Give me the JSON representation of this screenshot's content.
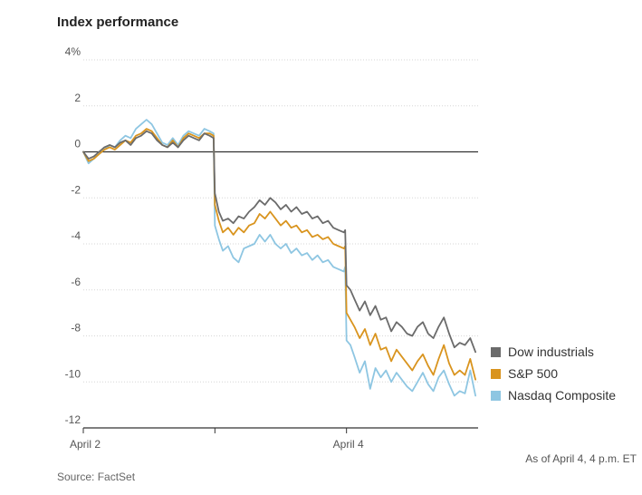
{
  "chart_data": {
    "type": "line",
    "title": "Index performance",
    "ylim": [
      -12,
      4
    ],
    "y_ticks": [
      {
        "value": 4,
        "label": "4%"
      },
      {
        "value": 2,
        "label": "2"
      },
      {
        "value": 0,
        "label": "0"
      },
      {
        "value": -2,
        "label": "-2"
      },
      {
        "value": -4,
        "label": "-4"
      },
      {
        "value": -6,
        "label": "-6"
      },
      {
        "value": -8,
        "label": "-8"
      },
      {
        "value": -10,
        "label": "-10"
      },
      {
        "value": -12,
        "label": "-12"
      }
    ],
    "xlim": [
      0,
      3
    ],
    "x_ticks": [
      {
        "value": 0,
        "label": "April 2"
      },
      {
        "value": 1,
        "label": ""
      },
      {
        "value": 2,
        "label": "April 4"
      }
    ],
    "grid": true,
    "legend_position": "bottom-right",
    "series": [
      {
        "name": "Dow industrials",
        "color": "#6b6b6b",
        "x": [
          0,
          0.04,
          0.08,
          0.12,
          0.16,
          0.2,
          0.24,
          0.28,
          0.32,
          0.36,
          0.4,
          0.44,
          0.48,
          0.52,
          0.56,
          0.6,
          0.64,
          0.68,
          0.72,
          0.76,
          0.8,
          0.84,
          0.88,
          0.92,
          0.96,
          0.99,
          1.0,
          1.03,
          1.06,
          1.1,
          1.14,
          1.18,
          1.22,
          1.26,
          1.3,
          1.34,
          1.38,
          1.42,
          1.46,
          1.5,
          1.54,
          1.58,
          1.62,
          1.66,
          1.7,
          1.74,
          1.78,
          1.82,
          1.86,
          1.9,
          1.94,
          1.98,
          1.99,
          2.0,
          2.03,
          2.06,
          2.1,
          2.14,
          2.18,
          2.22,
          2.26,
          2.3,
          2.34,
          2.38,
          2.42,
          2.46,
          2.5,
          2.54,
          2.58,
          2.62,
          2.66,
          2.7,
          2.74,
          2.78,
          2.82,
          2.86,
          2.9,
          2.94,
          2.98
        ],
        "y": [
          0,
          -0.3,
          -0.2,
          0,
          0.2,
          0.3,
          0.2,
          0.4,
          0.5,
          0.3,
          0.6,
          0.7,
          0.9,
          0.8,
          0.5,
          0.3,
          0.2,
          0.4,
          0.2,
          0.5,
          0.7,
          0.6,
          0.5,
          0.8,
          0.7,
          0.6,
          -1.8,
          -2.6,
          -3.0,
          -2.9,
          -3.1,
          -2.8,
          -2.9,
          -2.6,
          -2.4,
          -2.1,
          -2.3,
          -2.0,
          -2.2,
          -2.5,
          -2.3,
          -2.6,
          -2.4,
          -2.7,
          -2.6,
          -2.9,
          -2.8,
          -3.1,
          -3.0,
          -3.3,
          -3.4,
          -3.5,
          -3.4,
          -5.8,
          -6.0,
          -6.4,
          -6.9,
          -6.5,
          -7.1,
          -6.7,
          -7.3,
          -7.2,
          -7.8,
          -7.4,
          -7.6,
          -7.9,
          -8.0,
          -7.6,
          -7.4,
          -7.9,
          -8.1,
          -7.6,
          -7.2,
          -7.9,
          -8.5,
          -8.3,
          -8.4,
          -8.1,
          -8.7
        ]
      },
      {
        "name": "S&P 500",
        "color": "#d9941e",
        "x": [
          0,
          0.04,
          0.08,
          0.12,
          0.16,
          0.2,
          0.24,
          0.28,
          0.32,
          0.36,
          0.4,
          0.44,
          0.48,
          0.52,
          0.56,
          0.6,
          0.64,
          0.68,
          0.72,
          0.76,
          0.8,
          0.84,
          0.88,
          0.92,
          0.96,
          0.99,
          1.0,
          1.03,
          1.06,
          1.1,
          1.14,
          1.18,
          1.22,
          1.26,
          1.3,
          1.34,
          1.38,
          1.42,
          1.46,
          1.5,
          1.54,
          1.58,
          1.62,
          1.66,
          1.7,
          1.74,
          1.78,
          1.82,
          1.86,
          1.9,
          1.94,
          1.98,
          1.99,
          2.0,
          2.03,
          2.06,
          2.1,
          2.14,
          2.18,
          2.22,
          2.26,
          2.3,
          2.34,
          2.38,
          2.42,
          2.46,
          2.5,
          2.54,
          2.58,
          2.62,
          2.66,
          2.7,
          2.74,
          2.78,
          2.82,
          2.86,
          2.9,
          2.94,
          2.98
        ],
        "y": [
          0,
          -0.4,
          -0.3,
          -0.1,
          0.1,
          0.2,
          0.1,
          0.3,
          0.5,
          0.4,
          0.7,
          0.8,
          1.0,
          0.9,
          0.6,
          0.3,
          0.2,
          0.5,
          0.2,
          0.6,
          0.8,
          0.7,
          0.6,
          0.8,
          0.8,
          0.7,
          -2.3,
          -3.0,
          -3.5,
          -3.3,
          -3.6,
          -3.3,
          -3.5,
          -3.2,
          -3.1,
          -2.7,
          -2.9,
          -2.6,
          -2.9,
          -3.2,
          -3.0,
          -3.3,
          -3.2,
          -3.5,
          -3.4,
          -3.7,
          -3.6,
          -3.8,
          -3.7,
          -4.0,
          -4.1,
          -4.2,
          -4.1,
          -7.0,
          -7.3,
          -7.6,
          -8.1,
          -7.7,
          -8.4,
          -7.9,
          -8.6,
          -8.5,
          -9.1,
          -8.6,
          -8.9,
          -9.2,
          -9.5,
          -9.1,
          -8.8,
          -9.3,
          -9.7,
          -9.0,
          -8.4,
          -9.2,
          -9.7,
          -9.5,
          -9.7,
          -9.0,
          -9.9
        ]
      },
      {
        "name": "Nasdaq Composite",
        "color": "#8ec6e2",
        "x": [
          0,
          0.04,
          0.08,
          0.12,
          0.16,
          0.2,
          0.24,
          0.28,
          0.32,
          0.36,
          0.4,
          0.44,
          0.48,
          0.52,
          0.56,
          0.6,
          0.64,
          0.68,
          0.72,
          0.76,
          0.8,
          0.84,
          0.88,
          0.92,
          0.96,
          0.99,
          1.0,
          1.03,
          1.06,
          1.1,
          1.14,
          1.18,
          1.22,
          1.26,
          1.3,
          1.34,
          1.38,
          1.42,
          1.46,
          1.5,
          1.54,
          1.58,
          1.62,
          1.66,
          1.7,
          1.74,
          1.78,
          1.82,
          1.86,
          1.9,
          1.94,
          1.98,
          1.99,
          2.0,
          2.03,
          2.06,
          2.1,
          2.14,
          2.18,
          2.22,
          2.26,
          2.3,
          2.34,
          2.38,
          2.42,
          2.46,
          2.5,
          2.54,
          2.58,
          2.62,
          2.66,
          2.7,
          2.74,
          2.78,
          2.82,
          2.86,
          2.9,
          2.94,
          2.98
        ],
        "y": [
          0,
          -0.5,
          -0.3,
          -0.1,
          0.1,
          0.3,
          0.2,
          0.5,
          0.7,
          0.6,
          1.0,
          1.2,
          1.4,
          1.2,
          0.8,
          0.4,
          0.3,
          0.6,
          0.3,
          0.7,
          0.9,
          0.8,
          0.7,
          1.0,
          0.9,
          0.8,
          -3.2,
          -3.8,
          -4.3,
          -4.1,
          -4.6,
          -4.8,
          -4.2,
          -4.1,
          -4.0,
          -3.6,
          -3.9,
          -3.6,
          -4.0,
          -4.2,
          -4.0,
          -4.4,
          -4.2,
          -4.5,
          -4.4,
          -4.7,
          -4.5,
          -4.8,
          -4.7,
          -5.0,
          -5.1,
          -5.2,
          -5.0,
          -8.2,
          -8.4,
          -8.9,
          -9.6,
          -9.1,
          -10.3,
          -9.4,
          -9.8,
          -9.5,
          -10.0,
          -9.6,
          -9.9,
          -10.2,
          -10.4,
          -10.0,
          -9.6,
          -10.1,
          -10.4,
          -9.8,
          -9.5,
          -10.1,
          -10.6,
          -10.4,
          -10.5,
          -9.5,
          -10.6
        ]
      }
    ]
  },
  "note": "As of April 4, 4 p.m. ET",
  "source": "Source: FactSet"
}
